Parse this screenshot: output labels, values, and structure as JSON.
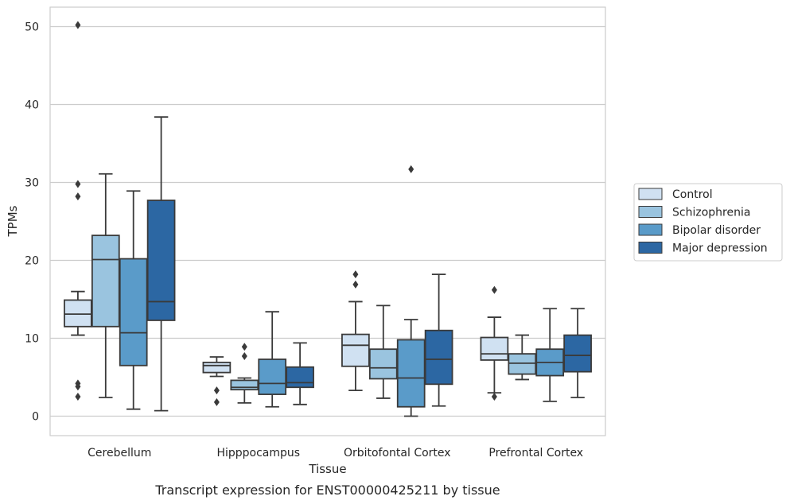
{
  "chart_data": {
    "type": "box",
    "title": "",
    "caption": "Transcript expression for ENST00000425211 by tissue",
    "xlabel": "Tissue",
    "ylabel": "TPMs",
    "ylim": [
      -2.5,
      52.5
    ],
    "yticks": [
      0,
      10,
      20,
      30,
      40,
      50
    ],
    "grid": "horizontal",
    "legend_position": "right",
    "categories": [
      "Cerebellum",
      "Hipppocampus",
      "Orbitofontal Cortex",
      "Prefrontal Cortex"
    ],
    "series": [
      {
        "name": "Control",
        "color": "#d0e1f2",
        "boxes": [
          {
            "whisker_low": 10.4,
            "q1": 11.5,
            "median": 13.1,
            "q3": 14.9,
            "whisker_high": 16.0,
            "outliers": [
              50.2,
              29.8,
              28.2,
              4.2,
              3.8,
              2.5
            ]
          },
          {
            "whisker_low": 5.1,
            "q1": 5.6,
            "median": 6.5,
            "q3": 6.9,
            "whisker_high": 7.6,
            "outliers": [
              3.3,
              1.8
            ]
          },
          {
            "whisker_low": 3.3,
            "q1": 6.4,
            "median": 9.1,
            "q3": 10.5,
            "whisker_high": 14.7,
            "outliers": [
              18.2,
              16.9
            ]
          },
          {
            "whisker_low": 3.0,
            "q1": 7.2,
            "median": 8.0,
            "q3": 10.1,
            "whisker_high": 12.7,
            "outliers": [
              16.2,
              2.5
            ]
          }
        ]
      },
      {
        "name": "Schizophrenia",
        "color": "#9ac4df",
        "boxes": [
          {
            "whisker_low": 2.4,
            "q1": 11.5,
            "median": 20.1,
            "q3": 23.2,
            "whisker_high": 31.1,
            "outliers": []
          },
          {
            "whisker_low": 1.7,
            "q1": 3.4,
            "median": 3.7,
            "q3": 4.6,
            "whisker_high": 4.9,
            "outliers": [
              8.9,
              7.7
            ]
          },
          {
            "whisker_low": 2.3,
            "q1": 4.8,
            "median": 6.2,
            "q3": 8.6,
            "whisker_high": 14.2,
            "outliers": []
          },
          {
            "whisker_low": 4.7,
            "q1": 5.4,
            "median": 6.8,
            "q3": 8.0,
            "whisker_high": 10.4,
            "outliers": []
          }
        ]
      },
      {
        "name": "Bipolar disorder",
        "color": "#5a9bc9",
        "boxes": [
          {
            "whisker_low": 0.9,
            "q1": 6.5,
            "median": 10.7,
            "q3": 20.2,
            "whisker_high": 28.9,
            "outliers": []
          },
          {
            "whisker_low": 1.2,
            "q1": 2.8,
            "median": 4.2,
            "q3": 7.3,
            "whisker_high": 13.4,
            "outliers": []
          },
          {
            "whisker_low": 0.0,
            "q1": 1.2,
            "median": 4.9,
            "q3": 9.8,
            "whisker_high": 12.4,
            "outliers": [
              31.7
            ]
          },
          {
            "whisker_low": 1.9,
            "q1": 5.2,
            "median": 6.9,
            "q3": 8.6,
            "whisker_high": 13.8,
            "outliers": []
          }
        ]
      },
      {
        "name": "Major depression",
        "color": "#2c67a3",
        "boxes": [
          {
            "whisker_low": 0.7,
            "q1": 12.3,
            "median": 14.7,
            "q3": 27.7,
            "whisker_high": 38.4,
            "outliers": []
          },
          {
            "whisker_low": 1.5,
            "q1": 3.7,
            "median": 4.3,
            "q3": 6.3,
            "whisker_high": 9.4,
            "outliers": []
          },
          {
            "whisker_low": 1.3,
            "q1": 4.1,
            "median": 7.3,
            "q3": 11.0,
            "whisker_high": 18.2,
            "outliers": []
          },
          {
            "whisker_low": 2.4,
            "q1": 5.7,
            "median": 7.8,
            "q3": 10.4,
            "whisker_high": 13.8,
            "outliers": []
          }
        ]
      }
    ]
  }
}
